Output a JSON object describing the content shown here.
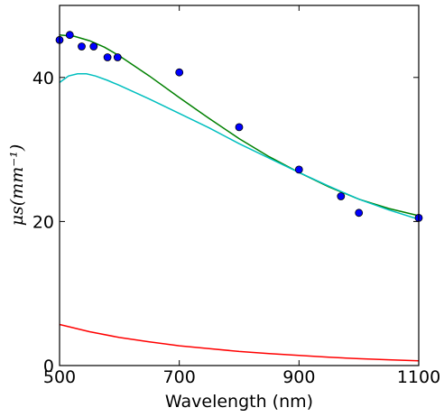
{
  "chart_data": {
    "type": "line",
    "title": "",
    "xlabel": "Wavelength (nm)",
    "ylabel": "μs(mm⁻¹)",
    "xlim": [
      500,
      1100
    ],
    "ylim": [
      0,
      50
    ],
    "xticks": [
      500,
      700,
      900,
      1100
    ],
    "xtick_labels": [
      "500",
      "700",
      "900",
      "1100"
    ],
    "yticks": [
      0,
      20,
      40
    ],
    "ytick_labels": [
      "0",
      "20",
      "40"
    ],
    "grid": false,
    "legend": "none",
    "series": [
      {
        "kind": "line",
        "color": "#008000",
        "x": [
          500,
          525,
          550,
          575,
          600,
          650,
          700,
          750,
          800,
          850,
          900,
          950,
          1000,
          1050,
          1100
        ],
        "y": [
          45.9,
          45.7,
          45.1,
          44.2,
          43.0,
          40.2,
          37.2,
          34.3,
          31.5,
          29.0,
          26.8,
          24.8,
          23.1,
          21.8,
          20.8
        ]
      },
      {
        "kind": "line",
        "color": "#00BFBF",
        "x": [
          500,
          515,
          530,
          545,
          560,
          580,
          600,
          650,
          700,
          750,
          800,
          850,
          900,
          950,
          1000,
          1050,
          1100
        ],
        "y": [
          39.3,
          40.2,
          40.5,
          40.5,
          40.2,
          39.6,
          38.9,
          37.0,
          35.0,
          33.0,
          30.8,
          28.8,
          26.8,
          24.9,
          23.1,
          21.6,
          20.3
        ]
      },
      {
        "kind": "line",
        "color": "#FF0000",
        "x": [
          500,
          550,
          600,
          650,
          700,
          750,
          800,
          850,
          900,
          950,
          1000,
          1050,
          1100
        ],
        "y": [
          5.7,
          4.7,
          3.9,
          3.3,
          2.75,
          2.35,
          1.95,
          1.65,
          1.4,
          1.15,
          0.95,
          0.8,
          0.65
        ]
      },
      {
        "kind": "scatter",
        "color": "#0000FF",
        "x": [
          500,
          517,
          537,
          557,
          580,
          597,
          700,
          800,
          900,
          970,
          1000,
          1100
        ],
        "y": [
          45.2,
          45.9,
          44.3,
          44.3,
          42.8,
          42.8,
          40.7,
          33.1,
          27.2,
          23.5,
          21.2,
          20.5
        ]
      }
    ]
  }
}
